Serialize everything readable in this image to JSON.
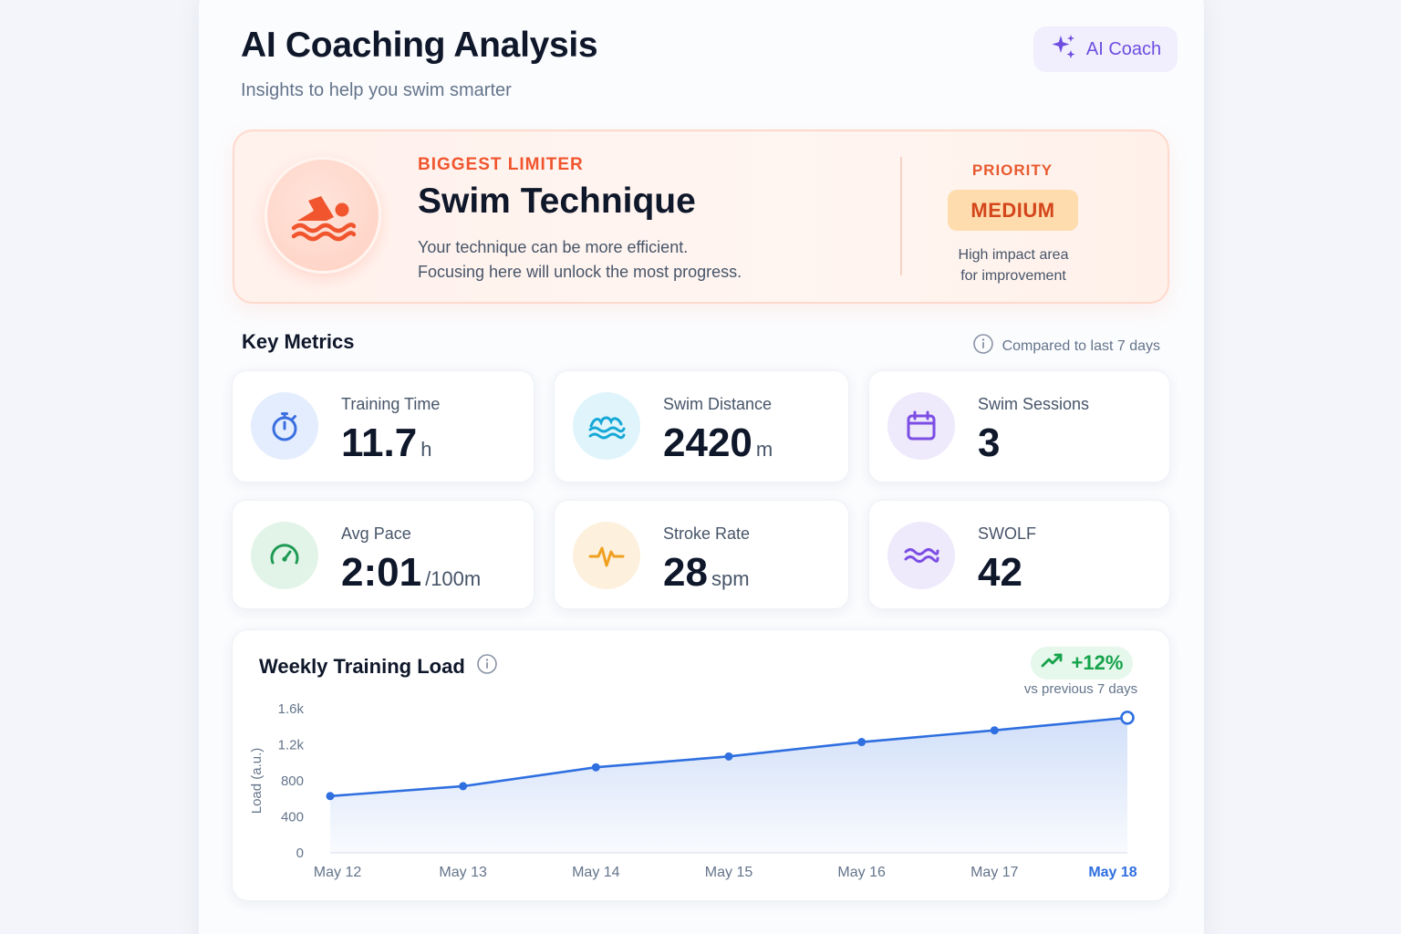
{
  "header": {
    "title": "AI Coaching Analysis",
    "subtitle": "Insights to help you swim smarter",
    "coach_button": "AI Coach"
  },
  "limiter": {
    "label": "BIGGEST LIMITER",
    "title": "Swim Technique",
    "description_line1": "Your technique can be more efficient.",
    "description_line2": "Focusing here will unlock the most progress.",
    "priority_label": "PRIORITY",
    "priority_value": "MEDIUM",
    "priority_note_line1": "High impact area",
    "priority_note_line2": "for improvement",
    "icon": "swimmer-icon"
  },
  "metrics_section": {
    "title": "Key Metrics",
    "compare_note": "Compared to last 7 days"
  },
  "metrics": [
    {
      "label": "Training Time",
      "value": "11.7",
      "unit": "h",
      "icon": "stopwatch-icon",
      "color": "#3b6fe0"
    },
    {
      "label": "Swim Distance",
      "value": "2420",
      "unit": "m",
      "icon": "waves-icon",
      "color": "#16a8d6"
    },
    {
      "label": "Swim Sessions",
      "value": "3",
      "unit": "",
      "icon": "calendar-icon",
      "color": "#7c4ee4"
    },
    {
      "label": "Avg Pace",
      "value": "2:01",
      "unit": "/100m",
      "icon": "speedometer-icon",
      "color": "#1f9a54"
    },
    {
      "label": "Stroke Rate",
      "value": "28",
      "unit": "spm",
      "icon": "pulse-icon",
      "color": "#f0a020"
    },
    {
      "label": "SWOLF",
      "value": "42",
      "unit": "",
      "icon": "water-icon",
      "color": "#7c4ee4"
    }
  ],
  "load_chart": {
    "title": "Weekly Training Load",
    "trend_value": "+12%",
    "trend_note": "vs previous 7 days"
  },
  "colors": {
    "accent_orange": "#f0552e",
    "accent_purple": "#6d4ee0",
    "line_blue": "#2f6fe0",
    "trend_green": "#16a34a"
  },
  "chart_data": {
    "type": "area",
    "categories": [
      "May 12",
      "May 13",
      "May 14",
      "May 15",
      "May 16",
      "May 17",
      "May 18"
    ],
    "values": [
      630,
      740,
      950,
      1070,
      1230,
      1360,
      1500
    ],
    "ylabel": "Load (a.u.)",
    "y_ticks": [
      "0",
      "400",
      "800",
      "1.2k",
      "1.6k"
    ],
    "ylim": [
      0,
      1600
    ],
    "highlight": "May 18",
    "grid": false,
    "legend": "none"
  }
}
